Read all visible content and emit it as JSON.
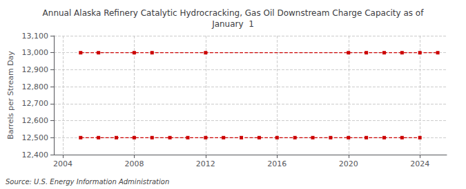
{
  "chart_data": {
    "type": "line",
    "title": "Annual Alaska Refinery Catalytic Hydrocracking, Gas Oil Downstream Charge Capacity as of\nJanuary  1",
    "ylabel": "Barrels per Stream Day",
    "source": "Source: U.S. Energy Information Administration",
    "series": [
      {
        "color": "#cc0000",
        "marker": "square",
        "line_style": "dashed",
        "x": [
          2005,
          2006,
          2008,
          2009,
          2012,
          2020,
          2021,
          2022,
          2023,
          2024,
          2025
        ],
        "values": [
          13000,
          13000,
          13000,
          13000,
          13000,
          13000,
          13000,
          13000,
          13000,
          13000,
          13000
        ]
      },
      {
        "color": "#cc0000",
        "marker": "square",
        "line_style": "dashed",
        "x": [
          2005,
          2006,
          2007,
          2008,
          2009,
          2010,
          2011,
          2012,
          2013,
          2014,
          2015,
          2016,
          2017,
          2018,
          2019,
          2020,
          2021,
          2022,
          2023,
          2024
        ],
        "values": [
          12500,
          12500,
          12500,
          12500,
          12500,
          12500,
          12500,
          12500,
          12500,
          12500,
          12500,
          12500,
          12500,
          12500,
          12500,
          12500,
          12500,
          12500,
          12500,
          12500
        ]
      }
    ],
    "xlim": [
      2003.5,
      2025.5
    ],
    "xticks": [
      2004,
      2008,
      2012,
      2016,
      2020,
      2024
    ],
    "ylim": [
      12400,
      13100
    ],
    "yticks": [
      {
        "value": 12400,
        "label": "12,400"
      },
      {
        "value": 12500,
        "label": "12,500"
      },
      {
        "value": 12600,
        "label": "12,600"
      },
      {
        "value": 12700,
        "label": "12,700"
      },
      {
        "value": 12800,
        "label": "12,800"
      },
      {
        "value": 12900,
        "label": "12,900"
      },
      {
        "value": 13000,
        "label": "13,000"
      },
      {
        "value": 13100,
        "label": "13,100"
      }
    ],
    "grid": true
  }
}
